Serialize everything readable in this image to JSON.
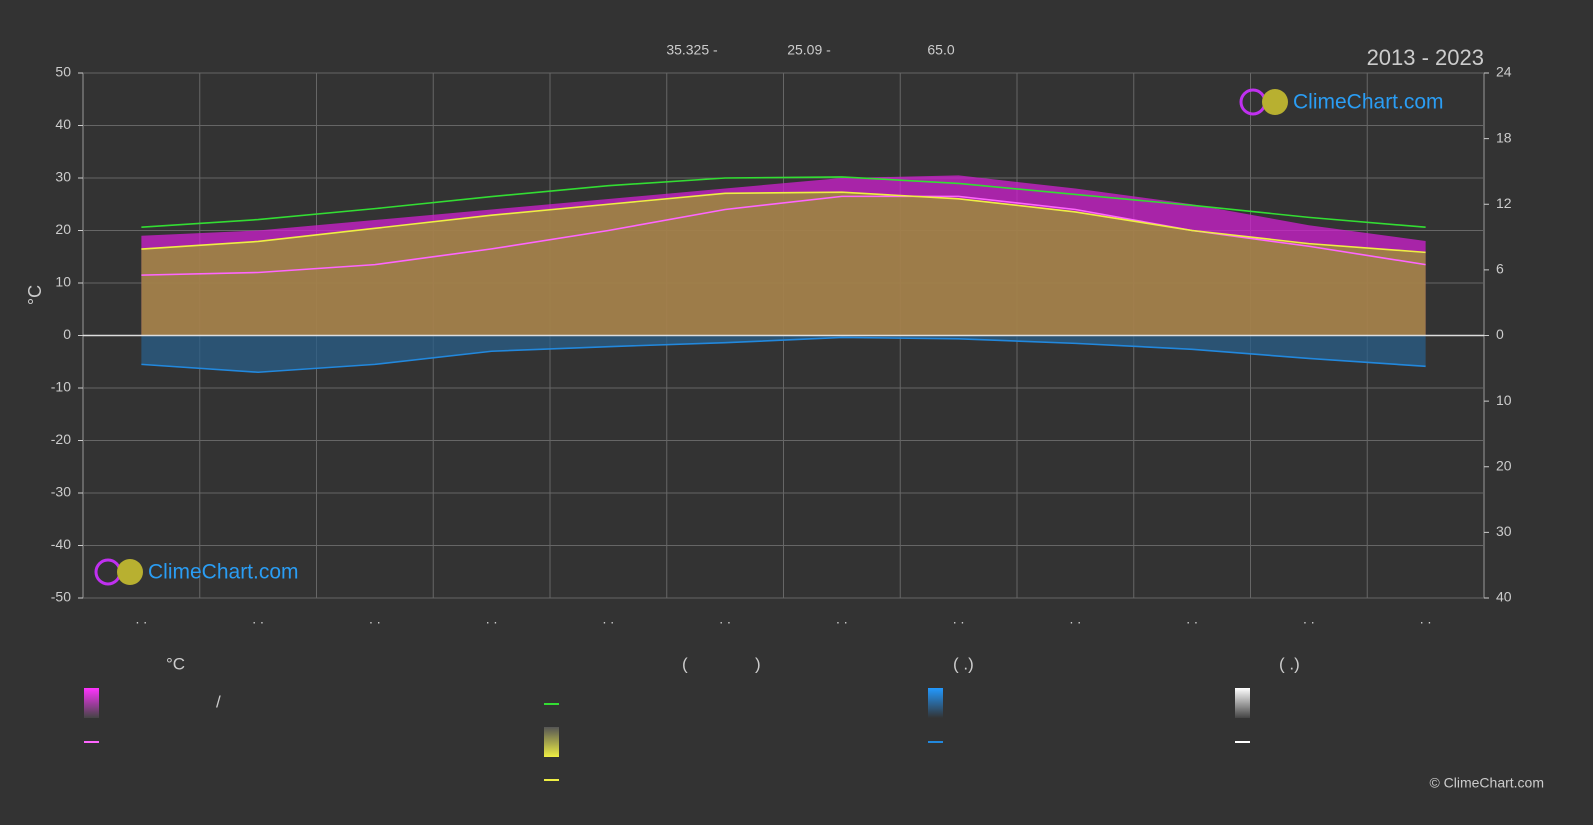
{
  "chart_data": {
    "type": "line",
    "period": "2013 - 2023",
    "stats": [
      "35.325 -",
      "25.09 -",
      "65.0"
    ],
    "ylabel": "°C",
    "categories": [
      ". .",
      ". .",
      ". .",
      ". .",
      ". .",
      ". .",
      ". .",
      ". .",
      ". .",
      ". .",
      ". .",
      ". ."
    ],
    "ylim": [
      -50,
      50
    ],
    "yticks": [
      -50,
      -40,
      -30,
      -20,
      -10,
      0,
      10,
      20,
      30,
      40,
      50
    ],
    "y2lim": [
      0,
      24
    ],
    "y2ticks": [
      0,
      6,
      12,
      18,
      24
    ],
    "y3lim": [
      0,
      40
    ],
    "y3ticks": [
      10,
      20,
      30,
      40
    ],
    "grid": true,
    "series": [
      {
        "color": "#d020d0",
        "fill": true,
        "values": [
          19,
          20,
          22,
          24,
          26,
          28,
          30,
          30.5,
          28,
          25,
          21,
          18
        ]
      },
      {
        "color": "#9a9a2a",
        "fill": true,
        "axis": "y2",
        "values": [
          7.9,
          8.6,
          9.8,
          11.0,
          12.0,
          13.0,
          13.1,
          12.5,
          11.3,
          9.6,
          8.4,
          7.6
        ]
      },
      {
        "color": "#2a5f8a",
        "fill": true,
        "axis": "y3",
        "values": [
          4.4,
          5.6,
          4.4,
          2.4,
          1.7,
          1.1,
          0.3,
          0.5,
          1.2,
          2.1,
          3.5,
          4.7
        ]
      },
      {
        "color": "#ff66ff",
        "values": [
          11.5,
          12,
          13.5,
          16.5,
          20,
          24,
          26.5,
          26.5,
          24,
          20,
          17,
          13.5
        ]
      },
      {
        "color": "#33dd33",
        "axis": "y2",
        "values": [
          9.9,
          10.6,
          11.6,
          12.7,
          13.7,
          14.4,
          14.5,
          13.9,
          12.9,
          11.9,
          10.8,
          9.9
        ]
      },
      {
        "color": "#eeee44",
        "axis": "y2",
        "values": [
          7.9,
          8.6,
          9.8,
          11.0,
          12.0,
          13.0,
          13.1,
          12.5,
          11.3,
          9.6,
          8.4,
          7.6
        ]
      },
      {
        "color": "#2288dd",
        "axis": "y3",
        "values": [
          4.4,
          5.6,
          4.4,
          2.4,
          1.7,
          1.1,
          0.3,
          0.5,
          1.2,
          2.1,
          3.5,
          4.7
        ]
      }
    ]
  },
  "legend": {
    "heading": "°C",
    "slash": "/",
    "open": "(",
    "close": ")",
    "col3": "( .)",
    "col4": "( .)"
  },
  "brand": "ClimeChart.com",
  "copyright": "© ClimeChart.com"
}
